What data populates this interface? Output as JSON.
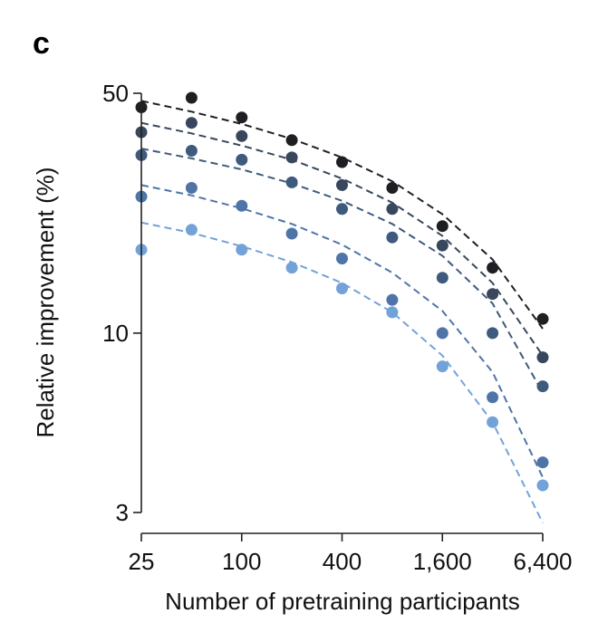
{
  "chart_data": {
    "type": "scatter",
    "panel_label": "c",
    "title": "",
    "xlabel": "Number of pretraining participants",
    "ylabel": "Relative improvement (%)",
    "x_scale": "log2",
    "y_scale": "log",
    "xlim": [
      25,
      6400
    ],
    "ylim": [
      3,
      50
    ],
    "x_ticks": [
      25,
      100,
      400,
      1600,
      6400
    ],
    "x_tick_labels": [
      "25",
      "100",
      "400",
      "1,600",
      "6,400"
    ],
    "y_ticks": [
      3,
      10,
      50
    ],
    "y_tick_labels": [
      "3",
      "10",
      "50"
    ],
    "x": [
      25,
      50,
      100,
      200,
      400,
      800,
      1600,
      3200,
      6400
    ],
    "series": [
      {
        "name": "series-1",
        "color": "#1e1f22",
        "values": [
          45.5,
          48.5,
          42.5,
          36.5,
          31.5,
          26.5,
          20.5,
          15.5,
          11.0
        ],
        "fit": [
          47.5,
          44.2,
          40.7,
          36.8,
          32.5,
          27.7,
          22.2,
          16.4,
          10.3
        ]
      },
      {
        "name": "series-2",
        "color": "#38475c",
        "values": [
          38.5,
          41.0,
          37.5,
          32.5,
          27.0,
          23.0,
          18.0,
          13.0,
          8.5
        ],
        "fit": [
          41.0,
          38.2,
          35.2,
          32.0,
          28.2,
          24.0,
          19.2,
          14.0,
          8.6
        ]
      },
      {
        "name": "series-3",
        "color": "#3e5a7c",
        "values": [
          33.0,
          34.0,
          32.0,
          27.5,
          23.0,
          19.0,
          14.5,
          10.0,
          7.0
        ],
        "fit": [
          34.5,
          32.3,
          30.0,
          27.3,
          24.3,
          20.8,
          16.8,
          12.2,
          6.7
        ]
      },
      {
        "name": "series-4",
        "color": "#4f74a8",
        "values": [
          25.0,
          26.5,
          23.5,
          19.5,
          16.5,
          12.5,
          10.0,
          6.5,
          4.2
        ],
        "fit": [
          27.0,
          25.2,
          23.1,
          20.8,
          18.1,
          15.0,
          11.6,
          7.7,
          3.8
        ]
      },
      {
        "name": "series-5",
        "color": "#72a2d8",
        "values": [
          17.5,
          20.0,
          17.5,
          15.5,
          13.5,
          11.5,
          8.0,
          5.5,
          3.6
        ],
        "fit": [
          21.0,
          19.6,
          17.9,
          16.1,
          14.0,
          11.5,
          8.6,
          5.5,
          2.8
        ]
      }
    ]
  }
}
